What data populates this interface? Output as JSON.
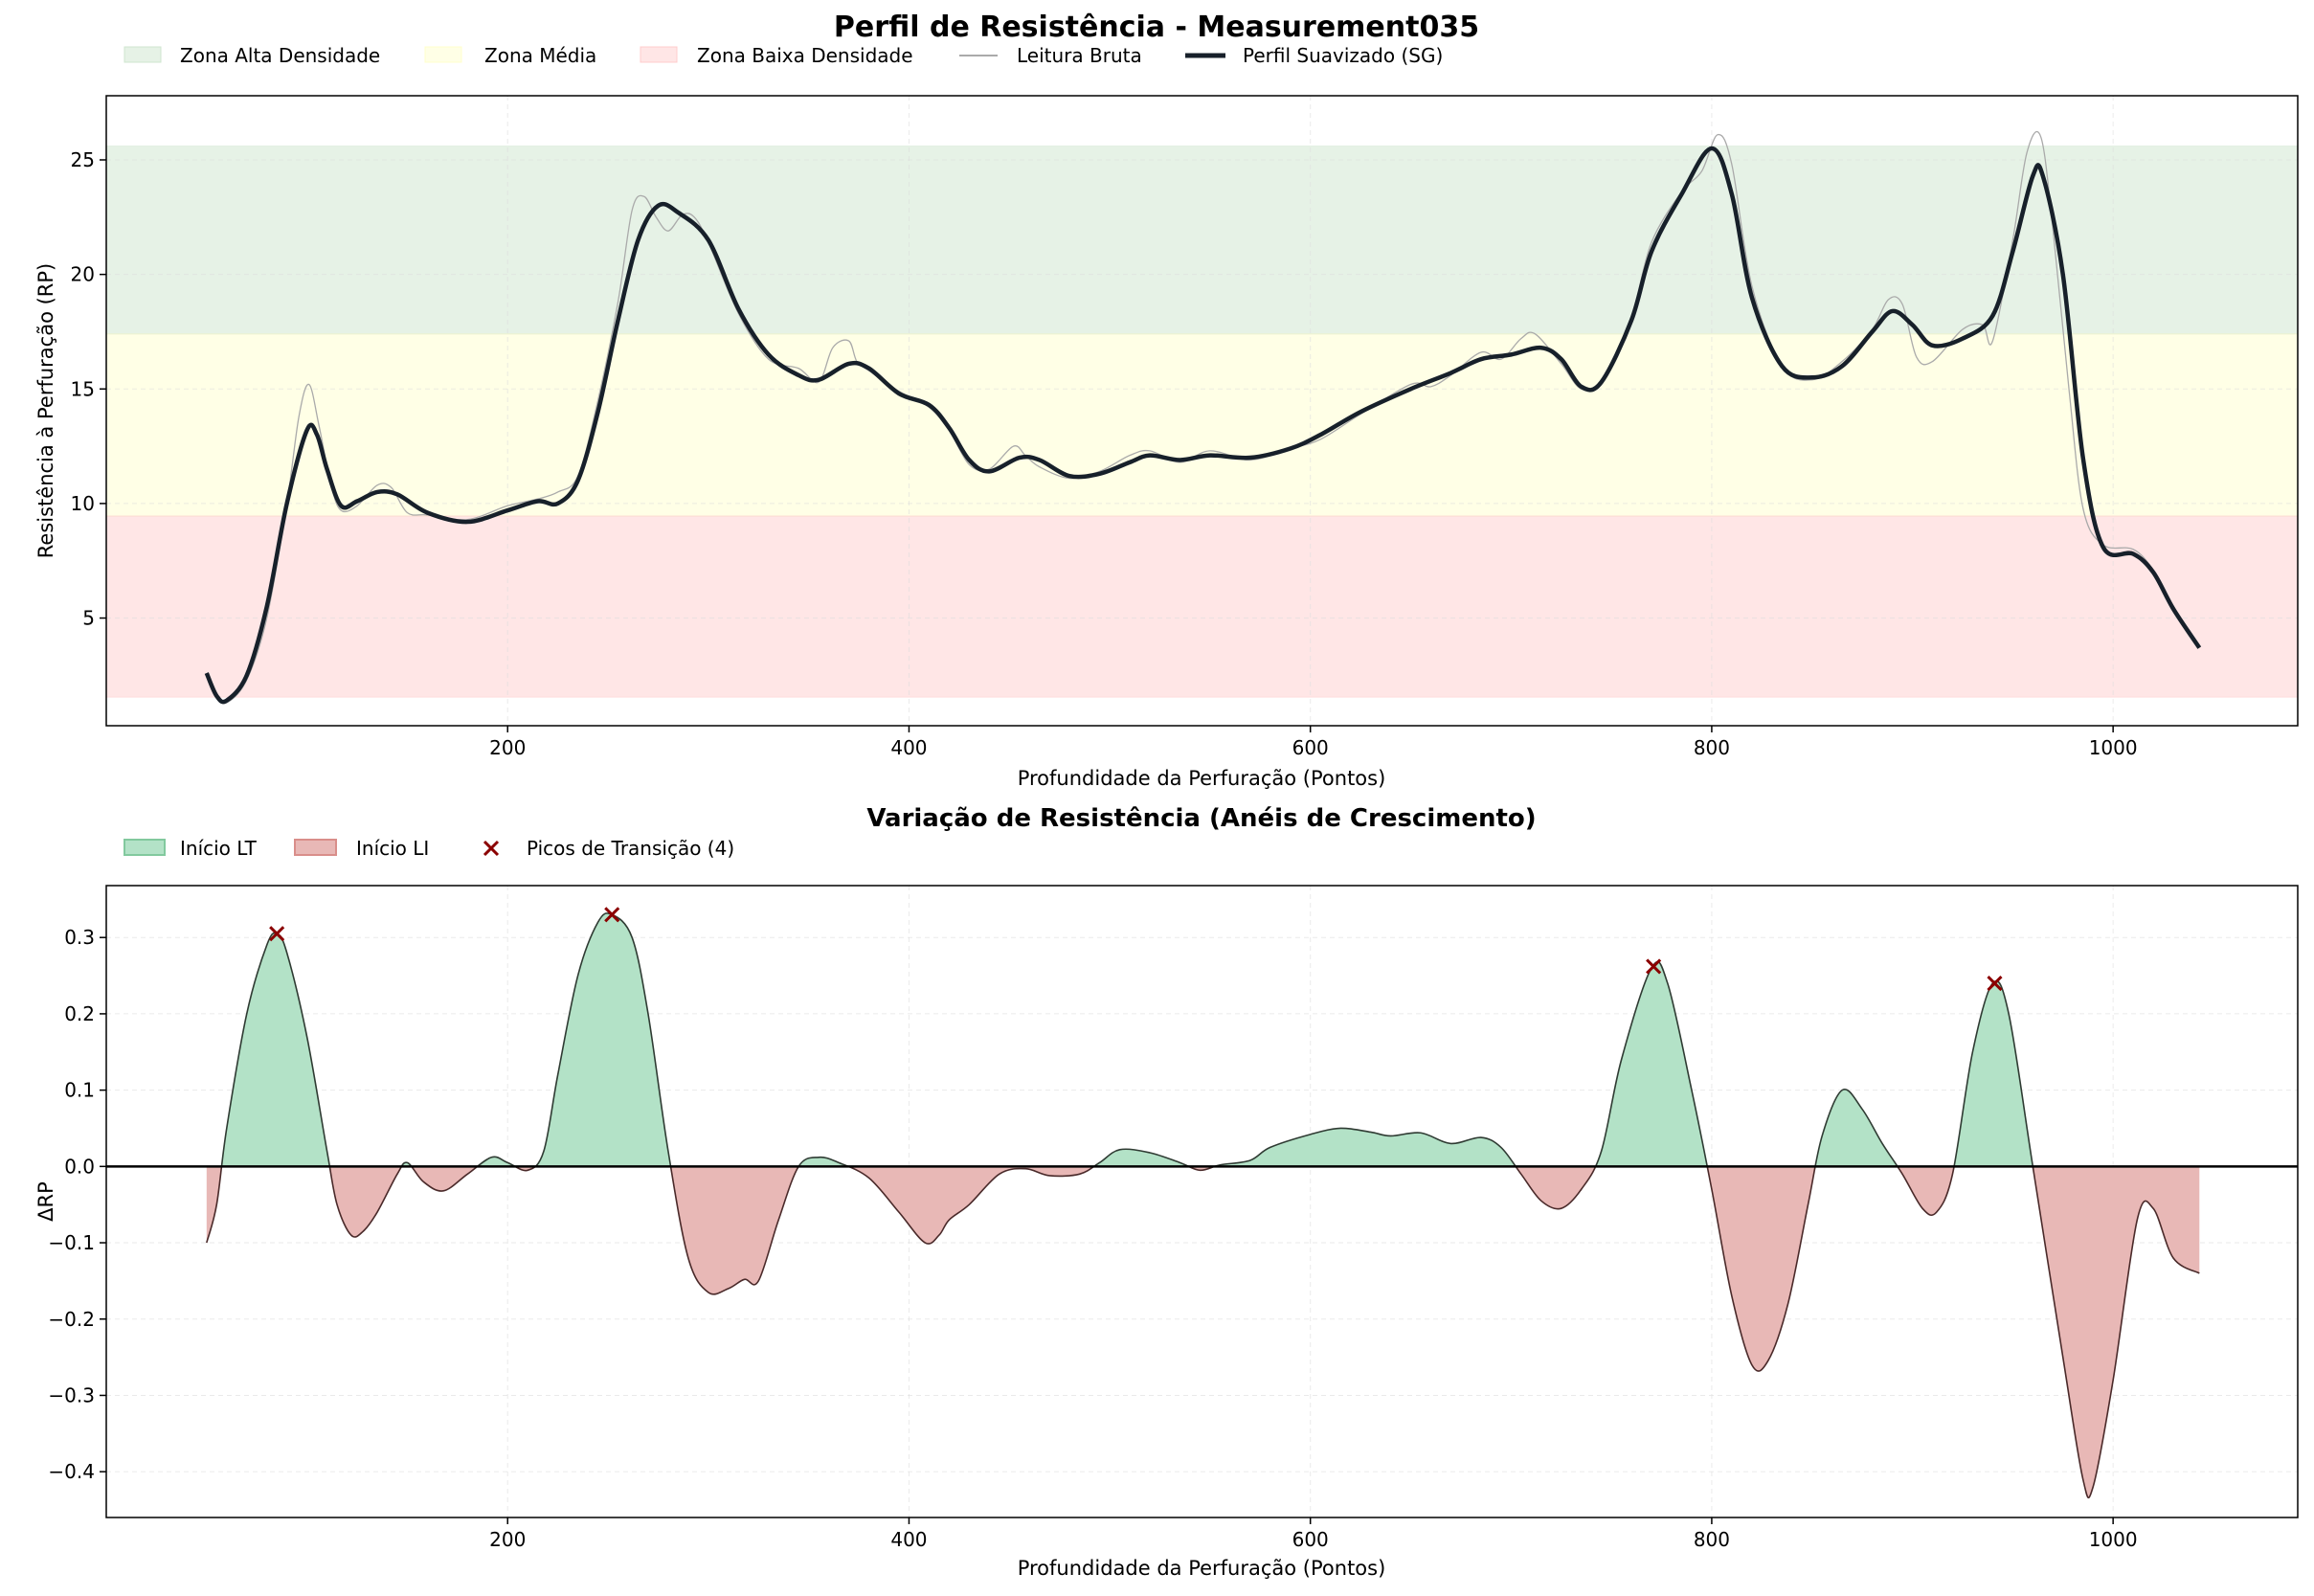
{
  "chart_data": [
    {
      "type": "line",
      "title": "Perfil de Resistência - Measurement035",
      "xlabel": "Profundidade da Perfuração (Pontos)",
      "ylabel": "Resistência à Perfuração (RP)",
      "xlim": [
        0,
        1092
      ],
      "ylim": [
        0.3,
        27.8
      ],
      "xticks": [
        200,
        400,
        600,
        800,
        1000
      ],
      "yticks": [
        5,
        10,
        15,
        20,
        25
      ],
      "grid": true,
      "legend_placement": "top-left, above plot",
      "zones": [
        {
          "name": "Zona Alta Densidade",
          "range": [
            17.4,
            25.6
          ],
          "color": "#d9ecd9"
        },
        {
          "name": "Zona Média",
          "range": [
            9.45,
            17.4
          ],
          "color": "#ffffd9"
        },
        {
          "name": "Zona Baixa Densidade",
          "range": [
            1.55,
            9.45
          ],
          "color": "#ffd9d9"
        }
      ],
      "series": [
        {
          "name": "Leitura Bruta",
          "color": "#aaaaaa",
          "x": [
            50,
            55,
            60,
            70,
            80,
            90,
            96,
            101,
            106,
            112,
            117,
            125,
            135,
            142,
            150,
            160,
            180,
            200,
            215,
            225,
            235,
            245,
            255,
            262,
            268,
            274,
            280,
            287,
            293,
            300,
            315,
            330,
            345,
            355,
            362,
            370,
            374,
            380,
            395,
            410,
            420,
            430,
            440,
            452,
            458,
            465,
            480,
            495,
            510,
            520,
            535,
            550,
            570,
            590,
            605,
            625,
            650,
            660,
            670,
            685,
            695,
            705,
            712,
            725,
            735,
            745,
            760,
            770,
            785,
            795,
            803,
            810,
            820,
            835,
            850,
            865,
            880,
            888,
            895,
            902,
            910,
            925,
            935,
            940,
            950,
            957,
            964,
            970,
            978,
            985,
            995,
            1010,
            1020,
            1030,
            1043
          ],
          "y": [
            2.6,
            1.6,
            1.3,
            2.3,
            5,
            10,
            13.8,
            15.2,
            13.4,
            10.8,
            9.7,
            9.9,
            10.8,
            10.7,
            9.6,
            9.5,
            9.3,
            9.9,
            10.2,
            10.5,
            11.2,
            14.5,
            18.8,
            22.8,
            23.4,
            22.5,
            21.9,
            22.6,
            22.5,
            21.4,
            18.3,
            16.3,
            15.9,
            15.3,
            16.8,
            17.1,
            16.2,
            15.8,
            14.9,
            14.2,
            13.2,
            11.7,
            11.5,
            12.5,
            12.1,
            11.6,
            11.1,
            11.4,
            12.1,
            12.3,
            11.8,
            12.3,
            11.9,
            12.4,
            12.8,
            13.9,
            15.2,
            15.1,
            15.6,
            16.6,
            16.3,
            17.2,
            17.4,
            16.1,
            15,
            15.4,
            18.2,
            21.4,
            23.6,
            24.5,
            26.1,
            24.8,
            19.5,
            16,
            15.4,
            16.2,
            17.6,
            18.9,
            18.7,
            16.4,
            16.2,
            17.6,
            17.8,
            17.1,
            21.5,
            25.3,
            26,
            22,
            15,
            9.8,
            8.2,
            8,
            7.1,
            5.5,
            3.7
          ]
        },
        {
          "name": "Perfil Suavizado (SG)",
          "color": "#17202a",
          "x": [
            50,
            55,
            60,
            70,
            80,
            90,
            100,
            105,
            110,
            117,
            125,
            135,
            145,
            160,
            180,
            200,
            215,
            225,
            235,
            245,
            255,
            265,
            275,
            285,
            300,
            315,
            330,
            345,
            355,
            370,
            380,
            395,
            410,
            420,
            430,
            440,
            455,
            465,
            480,
            495,
            510,
            520,
            535,
            550,
            570,
            590,
            605,
            625,
            650,
            670,
            685,
            700,
            715,
            725,
            735,
            745,
            760,
            770,
            785,
            800,
            810,
            820,
            835,
            850,
            865,
            880,
            890,
            900,
            910,
            925,
            940,
            950,
            960,
            965,
            975,
            985,
            995,
            1010,
            1020,
            1030,
            1043
          ],
          "y": [
            2.6,
            1.6,
            1.4,
            2.5,
            5.5,
            10,
            13.2,
            13,
            11.5,
            9.9,
            10.1,
            10.5,
            10.4,
            9.6,
            9.2,
            9.7,
            10.1,
            10,
            11,
            14,
            18,
            21.5,
            23,
            22.7,
            21.5,
            18.5,
            16.5,
            15.6,
            15.4,
            16.1,
            15.9,
            14.8,
            14.3,
            13.3,
            11.9,
            11.4,
            12,
            11.9,
            11.2,
            11.3,
            11.8,
            12.1,
            11.9,
            12.1,
            12,
            12.4,
            13,
            14,
            15,
            15.7,
            16.3,
            16.5,
            16.8,
            16.3,
            15.1,
            15.3,
            18,
            21,
            23.5,
            25.5,
            23.5,
            19,
            16,
            15.5,
            16,
            17.5,
            18.4,
            17.8,
            16.9,
            17.2,
            18.2,
            21,
            24.3,
            24.3,
            20,
            12,
            8.1,
            7.8,
            7,
            5.4,
            3.7
          ]
        }
      ]
    },
    {
      "type": "area",
      "title": "Variação de Resistência (Anéis de Crescimento)",
      "xlabel": "Profundidade da Perfuração (Pontos)",
      "ylabel": "ΔRP",
      "xlim": [
        0,
        1092
      ],
      "ylim": [
        -0.46,
        0.368
      ],
      "xticks": [
        200,
        400,
        600,
        800,
        1000
      ],
      "yticks": [
        -0.4,
        -0.3,
        -0.2,
        -0.1,
        0.0,
        0.1,
        0.2,
        0.3
      ],
      "ytick_labels": [
        "−0.4",
        "−0.3",
        "−0.2",
        "−0.1",
        "0.0",
        "0.1",
        "0.2",
        "0.3"
      ],
      "grid": true,
      "legend_placement": "top-left, above plot",
      "legend": [
        {
          "name": "Início LT",
          "color": "#b3e2c7",
          "edge": "#82c99e"
        },
        {
          "name": "Início LI",
          "color": "#e8b8b6",
          "edge": "#d98e8a"
        },
        {
          "name": "Picos de Transição (4)",
          "color": "#8b0000"
        }
      ],
      "x": [
        50,
        55,
        60,
        70,
        80,
        85,
        90,
        100,
        110,
        115,
        122,
        128,
        135,
        145,
        150,
        158,
        168,
        180,
        192,
        200,
        210,
        218,
        225,
        235,
        245,
        252,
        262,
        270,
        280,
        290,
        300,
        310,
        318,
        325,
        335,
        345,
        355,
        365,
        380,
        395,
        408,
        415,
        420,
        430,
        445,
        458,
        470,
        485,
        495,
        505,
        520,
        535,
        545,
        555,
        570,
        580,
        600,
        615,
        630,
        640,
        655,
        670,
        685,
        695,
        705,
        715,
        725,
        735,
        745,
        755,
        770,
        778,
        790,
        800,
        810,
        820,
        828,
        838,
        848,
        855,
        865,
        875,
        885,
        895,
        905,
        912,
        920,
        930,
        940,
        948,
        960,
        975,
        985,
        990,
        1000,
        1012,
        1020,
        1030,
        1043
      ],
      "y": [
        -0.1,
        -0.05,
        0.05,
        0.2,
        0.29,
        0.305,
        0.28,
        0.17,
        0.02,
        -0.05,
        -0.09,
        -0.085,
        -0.06,
        -0.01,
        0.005,
        -0.02,
        -0.032,
        -0.01,
        0.012,
        0.005,
        -0.005,
        0.02,
        0.12,
        0.25,
        0.32,
        0.33,
        0.3,
        0.2,
        0.02,
        -0.12,
        -0.165,
        -0.16,
        -0.148,
        -0.15,
        -0.07,
        0,
        0.012,
        0.005,
        -0.015,
        -0.06,
        -0.1,
        -0.09,
        -0.07,
        -0.05,
        -0.01,
        -0.003,
        -0.012,
        -0.01,
        0.005,
        0.022,
        0.018,
        0.005,
        -0.005,
        0.002,
        0.008,
        0.025,
        0.042,
        0.05,
        0.045,
        0.04,
        0.044,
        0.03,
        0.038,
        0.025,
        -0.01,
        -0.045,
        -0.055,
        -0.03,
        0.02,
        0.14,
        0.26,
        0.24,
        0.1,
        -0.03,
        -0.17,
        -0.26,
        -0.255,
        -0.18,
        -0.05,
        0.04,
        0.1,
        0.075,
        0.03,
        -0.01,
        -0.055,
        -0.06,
        -0.01,
        0.15,
        0.24,
        0.2,
        0,
        -0.25,
        -0.41,
        -0.42,
        -0.28,
        -0.07,
        -0.055,
        -0.12,
        -0.14
      ],
      "peaks": {
        "name": "Picos de Transição (4)",
        "x": [
          85,
          252,
          771,
          941
        ],
        "y": [
          0.305,
          0.33,
          0.262,
          0.24
        ]
      }
    }
  ]
}
